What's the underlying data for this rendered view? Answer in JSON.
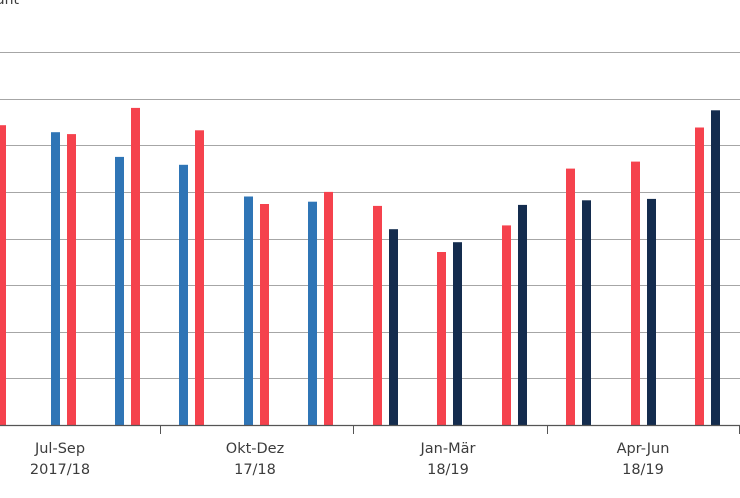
{
  "chart_data": {
    "type": "bar",
    "unit_label_fragment": "ant",
    "y_range": [
      0,
      8
    ],
    "grid": true,
    "colors": {
      "red": "#f5424d",
      "blue": "#2f75b6",
      "navy": "#142c4e",
      "grid": "#a6a6a6"
    },
    "categories": [
      {
        "line1": "Jul-Sep",
        "line2": "2017/18"
      },
      {
        "line1": "Okt-Dez",
        "line2": "17/18"
      },
      {
        "line1": "Jan-Mär",
        "line2": "18/19"
      },
      {
        "line1": "Apr-Jun",
        "line2": "18/19"
      }
    ],
    "bars": [
      {
        "group": 0,
        "color": "red",
        "value": 6.43
      },
      {
        "group": 0,
        "color": "blue",
        "value": 6.28
      },
      {
        "group": 0,
        "color": "red",
        "value": 6.24
      },
      {
        "group": 0,
        "color": "blue",
        "value": 5.75
      },
      {
        "group": 0,
        "color": "red",
        "value": 6.8
      },
      {
        "group": 1,
        "color": "blue",
        "value": 5.58
      },
      {
        "group": 1,
        "color": "red",
        "value": 6.32
      },
      {
        "group": 1,
        "color": "blue",
        "value": 4.9
      },
      {
        "group": 1,
        "color": "red",
        "value": 4.74
      },
      {
        "group": 1,
        "color": "blue",
        "value": 4.79
      },
      {
        "group": 1,
        "color": "red",
        "value": 5.0
      },
      {
        "group": 2,
        "color": "red",
        "value": 4.7
      },
      {
        "group": 2,
        "color": "navy",
        "value": 4.2
      },
      {
        "group": 2,
        "color": "red",
        "value": 3.71
      },
      {
        "group": 2,
        "color": "navy",
        "value": 3.92
      },
      {
        "group": 2,
        "color": "red",
        "value": 4.28
      },
      {
        "group": 2,
        "color": "navy",
        "value": 4.72
      },
      {
        "group": 3,
        "color": "red",
        "value": 5.5
      },
      {
        "group": 3,
        "color": "navy",
        "value": 4.82
      },
      {
        "group": 3,
        "color": "red",
        "value": 5.65
      },
      {
        "group": 3,
        "color": "navy",
        "value": 4.85
      },
      {
        "group": 3,
        "color": "red",
        "value": 6.38
      },
      {
        "group": 3,
        "color": "navy",
        "value": 6.75
      }
    ]
  }
}
